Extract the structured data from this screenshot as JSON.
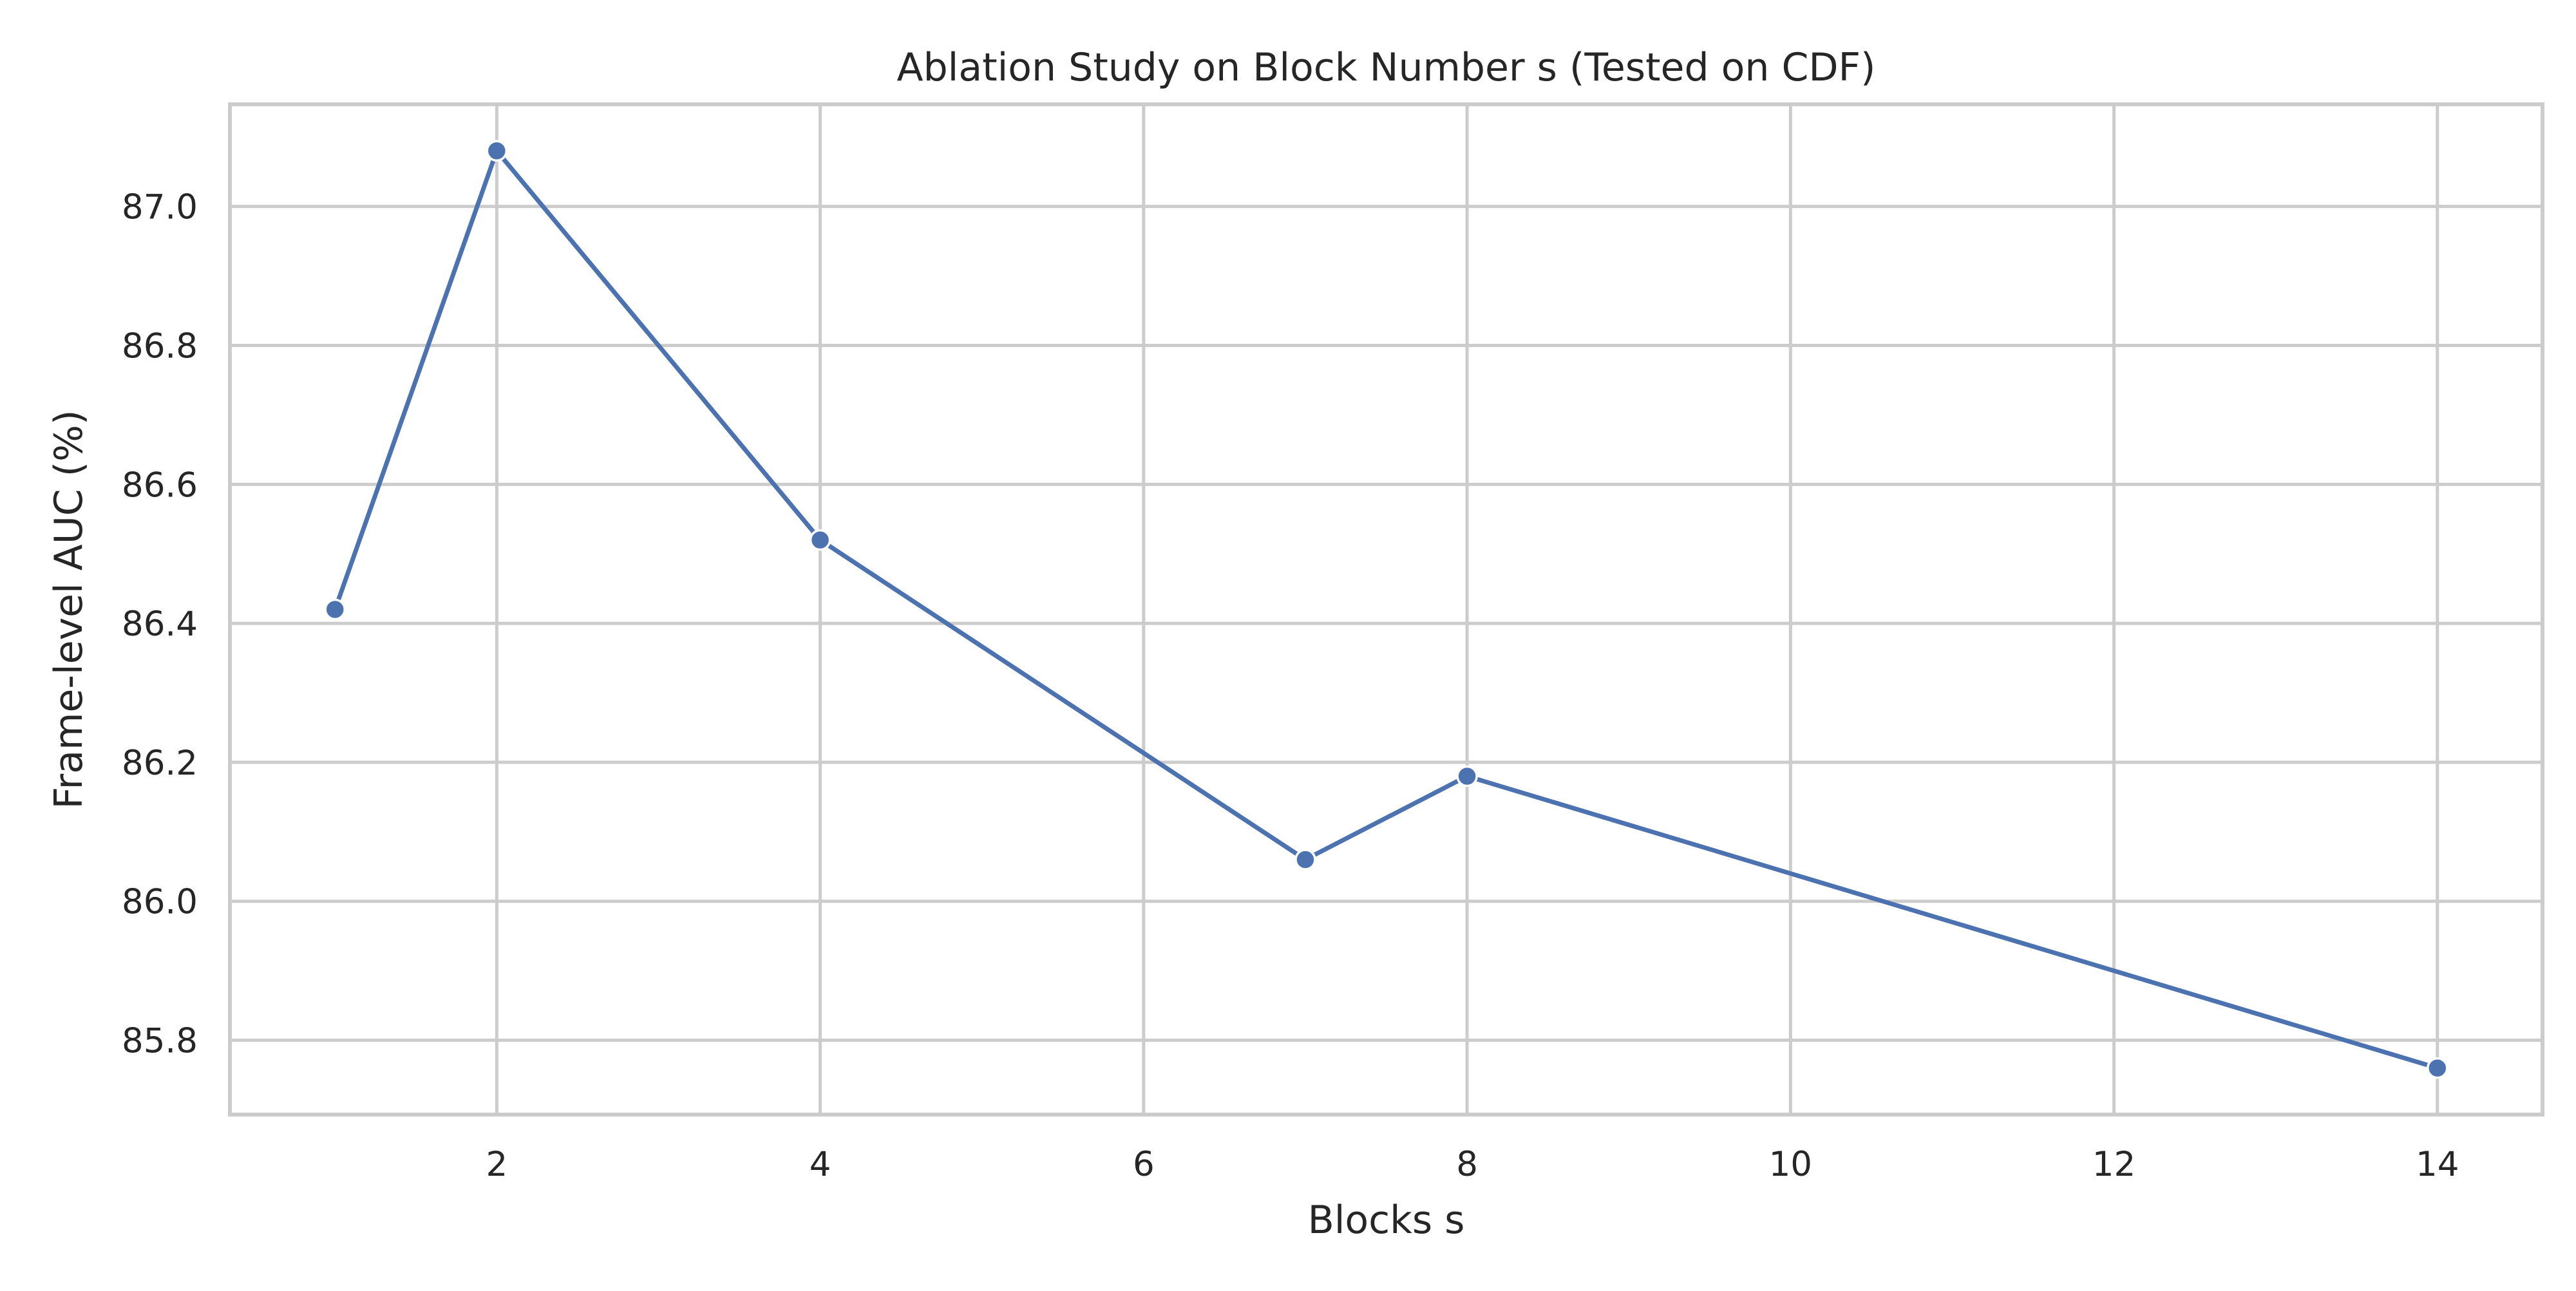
{
  "chart_data": {
    "type": "line",
    "title": "Ablation Study on Block Number s (Tested on CDF)",
    "xlabel": "Blocks s",
    "ylabel": "Frame-level AUC (%)",
    "x": [
      1,
      2,
      4,
      7,
      8,
      14
    ],
    "series": [
      {
        "values": [
          86.42,
          87.08,
          86.52,
          86.06,
          86.18,
          85.76
        ]
      }
    ],
    "xlim": [
      0.35,
      14.65
    ],
    "ylim": [
      85.693,
      87.147
    ],
    "xticks": [
      2,
      4,
      6,
      8,
      10,
      12,
      14
    ],
    "xtick_labels": [
      "2",
      "4",
      "6",
      "8",
      "10",
      "12",
      "14"
    ],
    "yticks": [
      85.8,
      86.0,
      86.2,
      86.4,
      86.6,
      86.8,
      87.0
    ],
    "ytick_labels": [
      "85.8",
      "86.0",
      "86.2",
      "86.4",
      "86.6",
      "86.8",
      "87.0"
    ],
    "grid": true,
    "legend": "none",
    "colors": {
      "line": "#4c72b0",
      "marker_edge": "#ffffff",
      "grid": "#cccccc",
      "frame": "#cccccc",
      "text": "#262626"
    }
  }
}
